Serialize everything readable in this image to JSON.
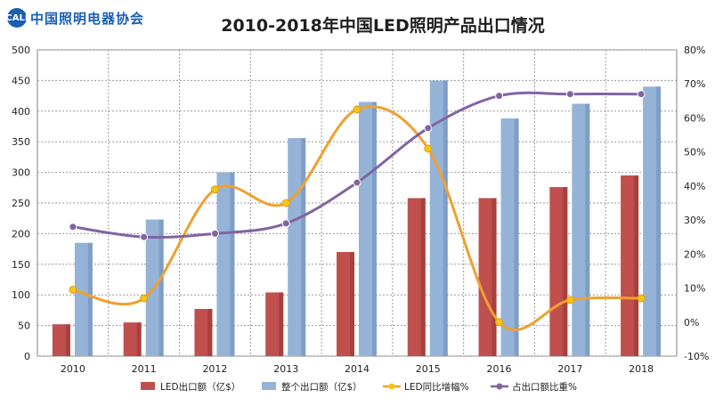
{
  "logo": {
    "mark": "CALI",
    "text": "中国照明电器协会"
  },
  "chart_data": {
    "type": "bar",
    "title": "2010-2018年中国LED照明产品出口情况",
    "categories": [
      "2010",
      "2011",
      "2012",
      "2013",
      "2014",
      "2015",
      "2016",
      "2017",
      "2018"
    ],
    "y_left": {
      "min": 0,
      "max": 500,
      "step": 50,
      "ticks": [
        "0",
        "50",
        "100",
        "150",
        "200",
        "250",
        "300",
        "350",
        "400",
        "450",
        "500"
      ]
    },
    "y_right": {
      "min": -10,
      "max": 80,
      "step": 10,
      "ticks": [
        "-10%",
        "0%",
        "10%",
        "20%",
        "30%",
        "40%",
        "50%",
        "60%",
        "70%",
        "80%"
      ]
    },
    "series": [
      {
        "name": "LED出口额（亿$）",
        "kind": "bar",
        "axis": "left",
        "color": "#c0504d",
        "values": [
          52,
          55,
          77,
          104,
          170,
          258,
          258,
          276,
          295
        ]
      },
      {
        "name": "整个出口额（亿$）",
        "kind": "bar",
        "axis": "left",
        "color": "#95b3d7",
        "values": [
          185,
          223,
          300,
          356,
          415,
          450,
          388,
          412,
          440
        ]
      },
      {
        "name": "LED同比增幅%",
        "kind": "line",
        "axis": "right",
        "color": "#f0a030",
        "values": [
          9.5,
          7,
          39,
          35,
          62.5,
          51,
          0,
          6.5,
          7
        ]
      },
      {
        "name": "占出口额比重%",
        "kind": "line",
        "axis": "right",
        "color": "#8064a2",
        "values": [
          28,
          25,
          26,
          29,
          41,
          57,
          66.5,
          67,
          67
        ]
      }
    ],
    "grid": true,
    "legend": "bottom"
  }
}
